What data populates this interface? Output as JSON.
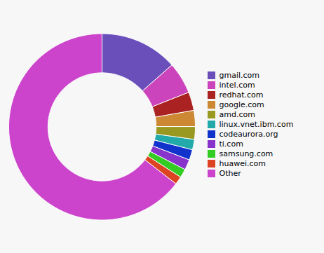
{
  "chart_data": {
    "type": "pie",
    "categories": [
      "gmail.com",
      "intel.com",
      "redhat.com",
      "google.com",
      "amd.com",
      "linux.vnet.ibm.com",
      "codeaurora.org",
      "ti.com",
      "samsung.com",
      "huawei.com",
      "Other"
    ],
    "values": [
      13.5,
      5.5,
      3.2,
      2.8,
      2.2,
      1.8,
      1.8,
      1.8,
      1.5,
      1.4,
      64.5
    ],
    "colors": [
      "#6a4fbb",
      "#cc44bb",
      "#aa2222",
      "#cc8833",
      "#999922",
      "#22aaaa",
      "#1133cc",
      "#8833cc",
      "#33cc22",
      "#dd4422",
      "#cc44cc"
    ],
    "legend": "right"
  }
}
